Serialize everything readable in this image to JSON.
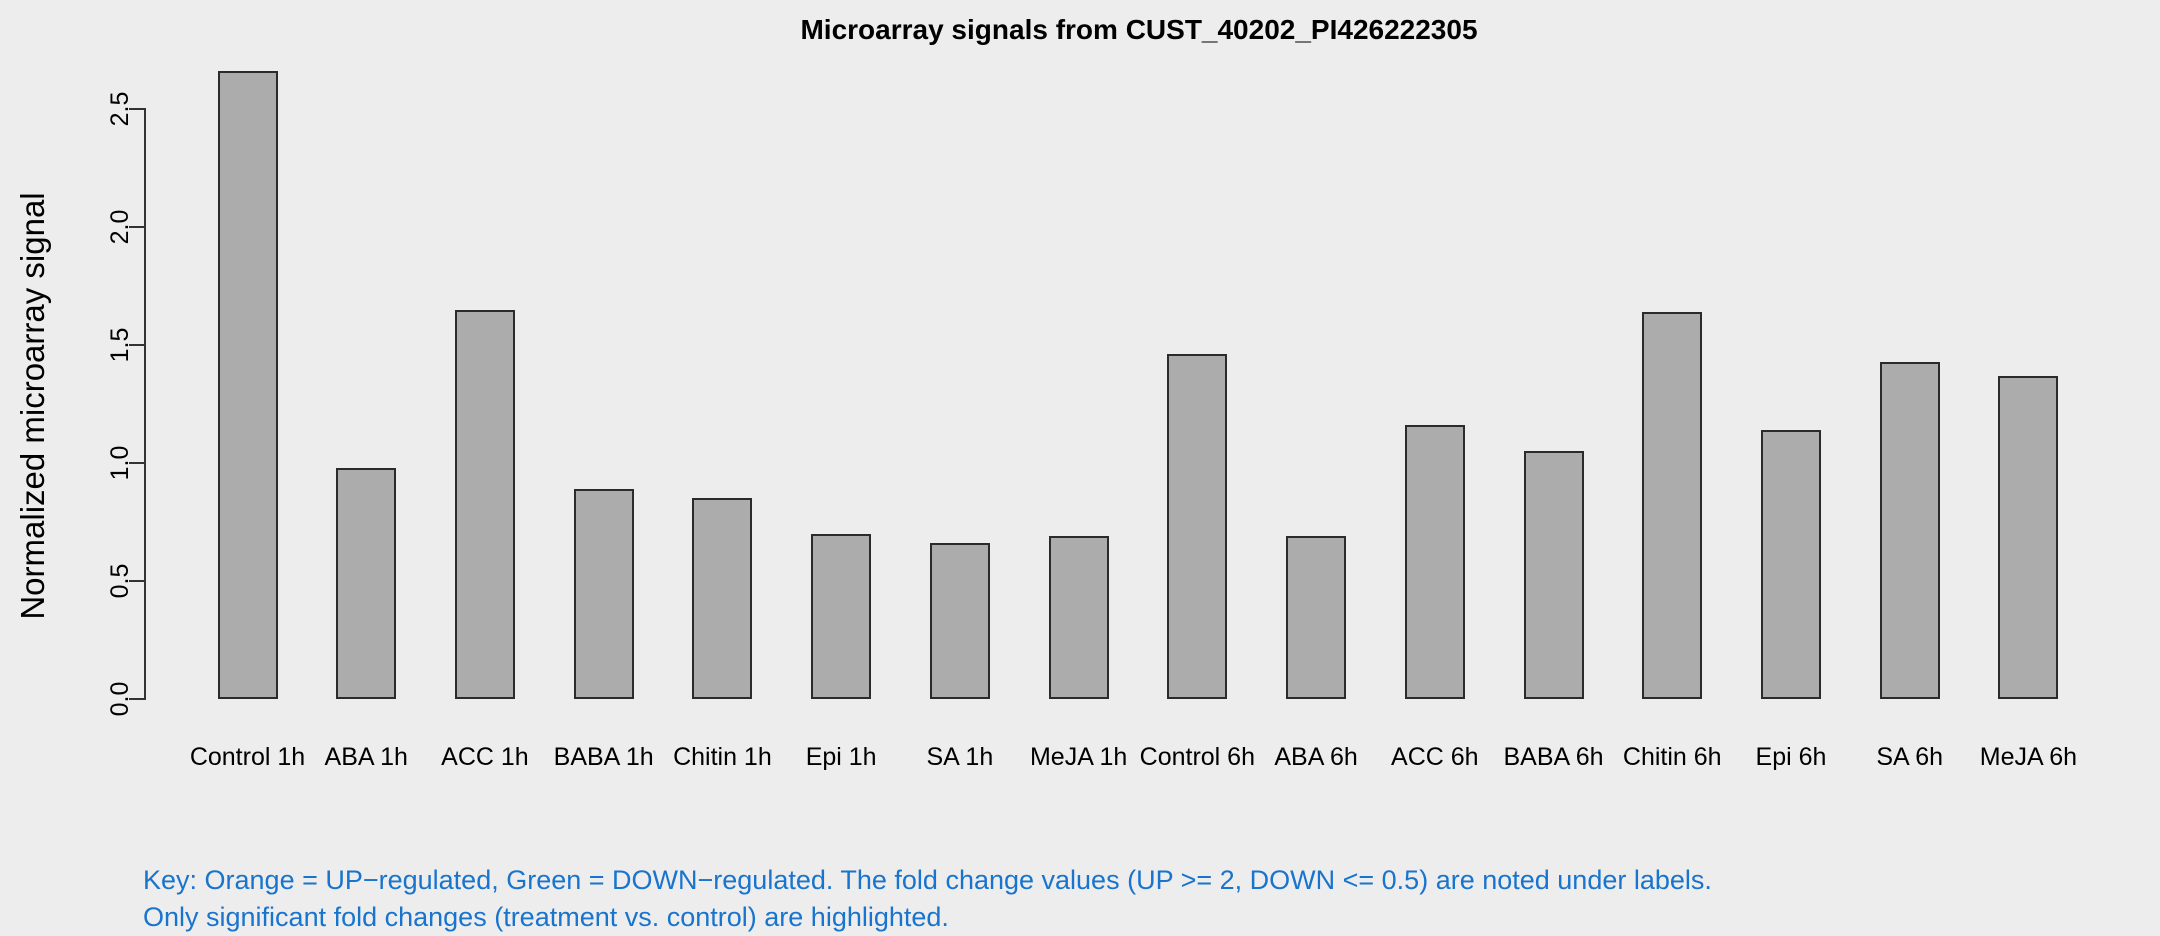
{
  "chart_data": {
    "type": "bar",
    "title": "Microarray signals from CUST_40202_PI426222305",
    "xlabel": "",
    "ylabel": "Normalized microarray signal",
    "categories": [
      "Control 1h",
      "ABA 1h",
      "ACC 1h",
      "BABA 1h",
      "Chitin 1h",
      "Epi 1h",
      "SA 1h",
      "MeJA 1h",
      "Control 6h",
      "ABA 6h",
      "ACC 6h",
      "BABA 6h",
      "Chitin 6h",
      "Epi 6h",
      "SA 6h",
      "MeJA 6h"
    ],
    "values": [
      2.66,
      0.98,
      1.65,
      0.89,
      0.85,
      0.7,
      0.66,
      0.69,
      1.46,
      0.69,
      1.16,
      1.05,
      1.64,
      1.14,
      1.43,
      1.37
    ],
    "ylim": [
      0,
      2.5
    ],
    "yticks": [
      0.0,
      0.5,
      1.0,
      1.5,
      2.0,
      2.5
    ],
    "ytick_labels": [
      "0.0",
      "0.5",
      "1.0",
      "1.5",
      "2.0",
      "2.5"
    ],
    "grid": false,
    "legend_position": "none"
  },
  "footer": {
    "key_line1": "Key: Orange = UP−regulated, Green = DOWN−regulated. The fold change values (UP >= 2, DOWN <= 0.5) are noted under labels.",
    "key_line2": "Only significant fold changes (treatment vs. control) are highlighted."
  },
  "colors": {
    "background": "#EDEDED",
    "bar_fill": "#ACACAC",
    "bar_border": "#2B2B2B",
    "axis": "#333333",
    "text": "#000000",
    "key_text": "#1874CD"
  }
}
